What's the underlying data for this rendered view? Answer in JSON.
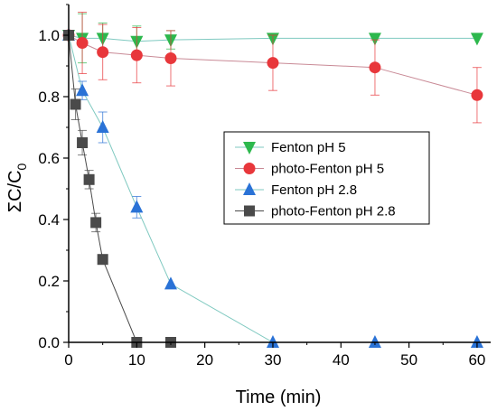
{
  "chart_data": {
    "type": "scatter",
    "xlabel": "Time (min)",
    "ylabel": {
      "main": "ΣC/C",
      "sub": "0"
    },
    "xlim": [
      0,
      62
    ],
    "ylim": [
      0,
      1.1
    ],
    "xticks": [
      0,
      10,
      20,
      30,
      40,
      50,
      60
    ],
    "yticks": [
      0.0,
      0.2,
      0.4,
      0.6,
      0.8,
      1.0
    ],
    "xtick_labels": [
      "0",
      "10",
      "20",
      "30",
      "40",
      "50",
      "60"
    ],
    "ytick_labels": [
      "0.0",
      "0.2",
      "0.4",
      "0.6",
      "0.8",
      "1.0"
    ],
    "legend_position": "center-right",
    "series": [
      {
        "name": "Fenton pH 5",
        "marker": "triangle-down",
        "color": "#2db84d",
        "line_color": "#7fc9c0",
        "x": [
          0,
          2,
          5,
          10,
          15,
          30,
          45,
          60
        ],
        "y": [
          1.0,
          0.99,
          0.99,
          0.98,
          0.985,
          0.99,
          0.99,
          0.99
        ],
        "err": [
          0.0,
          0.08,
          0.05,
          0.05,
          0.03,
          0.0,
          0.0,
          0.0
        ]
      },
      {
        "name": "photo-Fenton pH 5",
        "marker": "circle",
        "color": "#e8373b",
        "line_color": "#c98a96",
        "x": [
          0,
          2,
          5,
          10,
          15,
          30,
          45,
          60
        ],
        "y": [
          1.0,
          0.975,
          0.945,
          0.935,
          0.925,
          0.91,
          0.895,
          0.805
        ],
        "err": [
          0.0,
          0.1,
          0.09,
          0.09,
          0.09,
          0.09,
          0.09,
          0.09
        ]
      },
      {
        "name": "Fenton pH 2.8",
        "marker": "triangle-up",
        "color": "#2a72d6",
        "line_color": "#7fc9c0",
        "x": [
          0,
          2,
          5,
          10,
          15,
          30,
          45,
          60
        ],
        "y": [
          1.0,
          0.82,
          0.7,
          0.44,
          0.19,
          0.0,
          0.0,
          0.0
        ],
        "err": [
          0.0,
          0.03,
          0.05,
          0.035,
          0.0,
          0.0,
          0.0,
          0.0
        ]
      },
      {
        "name": "photo-Fenton pH 2.8",
        "marker": "square",
        "color": "#4a4a4a",
        "line_color": "#4a4a4a",
        "x": [
          0,
          1,
          2,
          3,
          4,
          5,
          10,
          15
        ],
        "y": [
          1.0,
          0.775,
          0.65,
          0.53,
          0.39,
          0.27,
          0.0,
          0.0
        ],
        "err": [
          0.0,
          0.05,
          0.04,
          0.03,
          0.03,
          0.0,
          0.0,
          0.0
        ]
      }
    ]
  }
}
